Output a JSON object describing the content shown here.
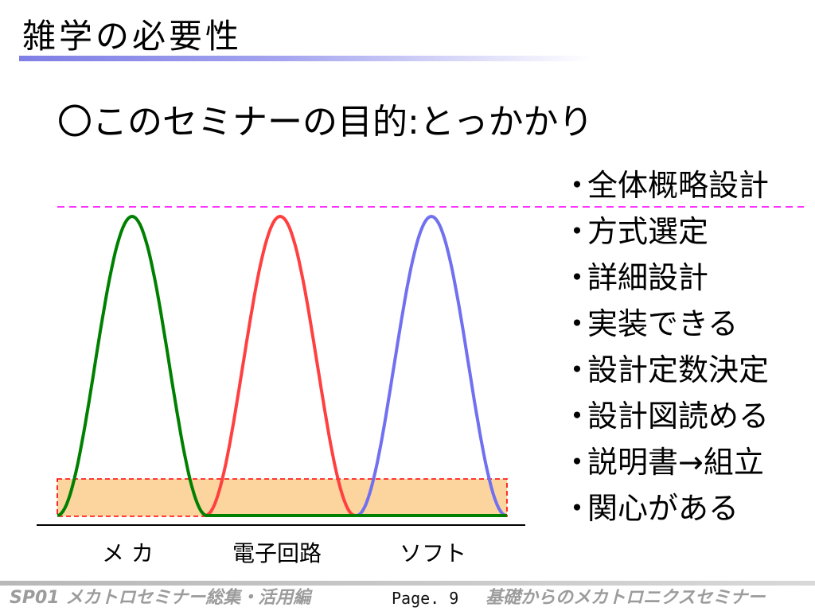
{
  "slide": {
    "title": "雑学の必要性",
    "subtitle": "〇このセミナーの目的:とっかかり"
  },
  "bullets": [
    {
      "marker": "・",
      "text": "全体概略設計"
    },
    {
      "marker": "・",
      "text": "方式選定"
    },
    {
      "marker": "・",
      "text": "詳細設計"
    },
    {
      "marker": "・",
      "text": "実装できる"
    },
    {
      "marker": "・",
      "text": "設計定数決定"
    },
    {
      "marker": "・",
      "text": "設計図読める"
    },
    {
      "marker": "・",
      "text": "説明書→組立"
    },
    {
      "marker": "・",
      "text": "関心がある"
    }
  ],
  "diagram": {
    "categories": [
      "メ カ",
      "電子回路",
      "ソフト"
    ],
    "colors": {
      "mecha": "#008000",
      "circuit": "#ff4040",
      "soft": "#7070f0",
      "target_line": "#ff33ff",
      "base_band_fill": "#fcd59e",
      "base_band_border": "#ff0000"
    }
  },
  "footer": {
    "left": "SP01 メカトロセミナー総集・活用編",
    "page": "Page. 9",
    "right": "基礎からのメカトロニクスセミナー"
  }
}
